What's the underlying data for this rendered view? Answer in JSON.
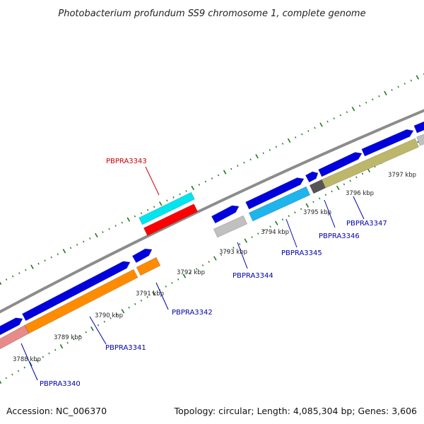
{
  "title": "Photobacterium profundum SS9 chromosome 1, complete genome",
  "footer": {
    "accession": "Accession: NC_006370",
    "summary": "Topology: circular; Length: 4,085,304 bp; Genes: 3,606"
  },
  "colors": {
    "backbone": "#8c8c8c",
    "tick": "#1f7a1f",
    "label_blue": "#0000aa",
    "label_red": "#cc0000"
  },
  "scale_labels": [
    "3788 kbp",
    "3789 kbp",
    "3790 kbp",
    "3791 kbp",
    "3792 kbp",
    "3793 kbp",
    "3794 kbp",
    "3795 kbp",
    "3796 kbp",
    "3797 kbp"
  ],
  "genes": [
    {
      "label": "PBPRA3340",
      "color": "#e88a8a",
      "highlight": false
    },
    {
      "label": "PBPRA3341",
      "color": "#ff8c00",
      "highlight": false
    },
    {
      "label": "PBPRA3342",
      "color": "#ff8c00",
      "highlight": false
    },
    {
      "label": "PBPRA3343",
      "color": "#ff0000",
      "highlight": true
    },
    {
      "label": "PBPRA3344",
      "color": "#c0c0c0",
      "highlight": false
    },
    {
      "label": "PBPRA3345",
      "color": "#1eb4ee",
      "highlight": false
    },
    {
      "label": "PBPRA3346",
      "color": "#555555",
      "highlight": false
    },
    {
      "label": "PBPRA3347",
      "color": "#bdb76b",
      "highlight": false
    }
  ]
}
